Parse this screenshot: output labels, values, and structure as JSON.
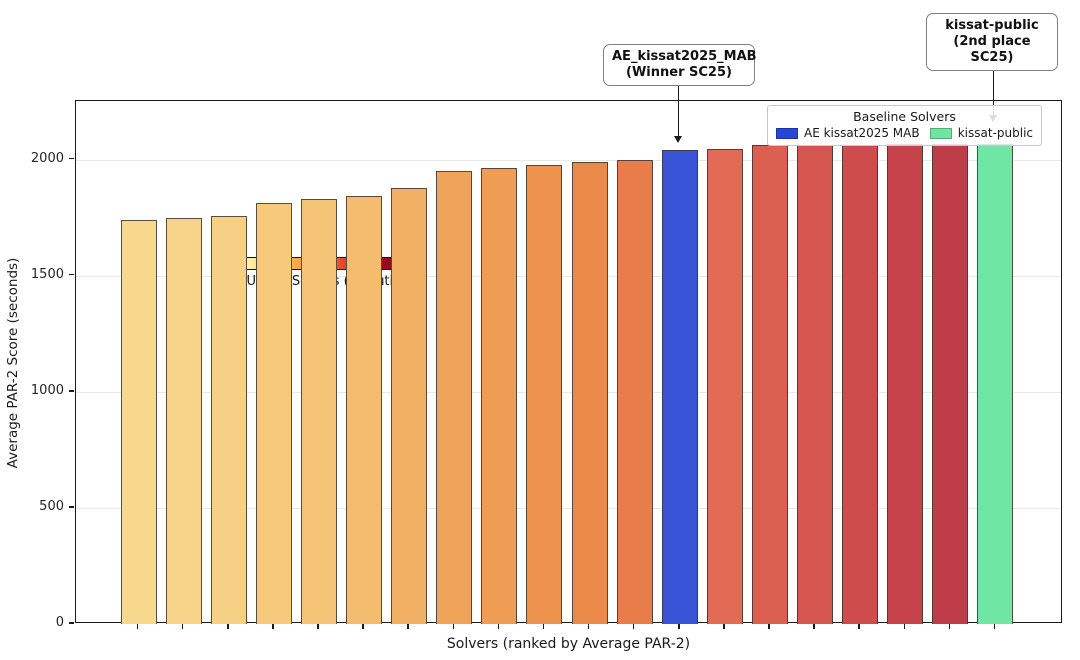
{
  "chart_data": {
    "type": "bar",
    "title": "",
    "xlabel": "Solvers (ranked by Average PAR-2)",
    "ylabel": "Average PAR-2 Score (seconds)",
    "ylim": [
      0,
      2252
    ],
    "yticks": [
      0,
      500,
      1000,
      1500,
      2000
    ],
    "x_tick_labels": "none (one unlabeled tick per bar)",
    "grid": "horizontal",
    "categories_note": "20 solvers ranked left-to-right by ascending Average PAR-2 score",
    "colorbar": {
      "label": "SATLUTION Solvers (Evolution)",
      "gradient": [
        "#fffbc9",
        "#fee690",
        "#fec561",
        "#fd9b43",
        "#f4703a",
        "#e1302a",
        "#b50026",
        "#7f0c1d"
      ]
    },
    "legend": {
      "title": "Baseline Solvers",
      "entries": [
        {
          "label": "AE kissat2025 MAB",
          "color": "#2646d6"
        },
        {
          "label": "kissat-public",
          "color": "#70e5a2"
        }
      ]
    },
    "annotations": [
      {
        "lines": [
          "AE_kissat2025_MAB",
          "(Winner SC25)"
        ],
        "points_to_rank": 13
      },
      {
        "lines": [
          "kissat-public",
          "(2nd place SC25)"
        ],
        "points_to_rank": 20
      }
    ],
    "bars": [
      {
        "rank": 1,
        "group": "SATLUTION",
        "value": 1741,
        "color": "#f8d88c"
      },
      {
        "rank": 2,
        "group": "SATLUTION",
        "value": 1747,
        "color": "#f7d489"
      },
      {
        "rank": 3,
        "group": "SATLUTION",
        "value": 1755,
        "color": "#f6d085"
      },
      {
        "rank": 4,
        "group": "SATLUTION",
        "value": 1812,
        "color": "#f6c97c"
      },
      {
        "rank": 5,
        "group": "SATLUTION",
        "value": 1831,
        "color": "#f5c375"
      },
      {
        "rank": 6,
        "group": "SATLUTION",
        "value": 1841,
        "color": "#f4bc6f"
      },
      {
        "rank": 7,
        "group": "SATLUTION",
        "value": 1879,
        "color": "#f2b064"
      },
      {
        "rank": 8,
        "group": "SATLUTION",
        "value": 1952,
        "color": "#f0a45a"
      },
      {
        "rank": 9,
        "group": "SATLUTION",
        "value": 1962,
        "color": "#ef9d54"
      },
      {
        "rank": 10,
        "group": "SATLUTION",
        "value": 1976,
        "color": "#ed934e"
      },
      {
        "rank": 11,
        "group": "SATLUTION",
        "value": 1991,
        "color": "#eb8949"
      },
      {
        "rank": 12,
        "group": "SATLUTION",
        "value": 1999,
        "color": "#e87d49"
      },
      {
        "rank": 13,
        "group": "AE kissat2025 MAB",
        "value": 2041,
        "color": "#3a54d8"
      },
      {
        "rank": 14,
        "group": "SATLUTION",
        "value": 2047,
        "color": "#e16b54"
      },
      {
        "rank": 15,
        "group": "SATLUTION",
        "value": 2063,
        "color": "#dc6050"
      },
      {
        "rank": 16,
        "group": "SATLUTION",
        "value": 2064,
        "color": "#d5564e"
      },
      {
        "rank": 17,
        "group": "SATLUTION",
        "value": 2064,
        "color": "#ce4c4c"
      },
      {
        "rank": 18,
        "group": "SATLUTION",
        "value": 2065,
        "color": "#c7434b"
      },
      {
        "rank": 19,
        "group": "SATLUTION",
        "value": 2065,
        "color": "#bf3c49"
      },
      {
        "rank": 20,
        "group": "kissat-public",
        "value": 2066,
        "color": "#6fe6a3"
      }
    ]
  }
}
